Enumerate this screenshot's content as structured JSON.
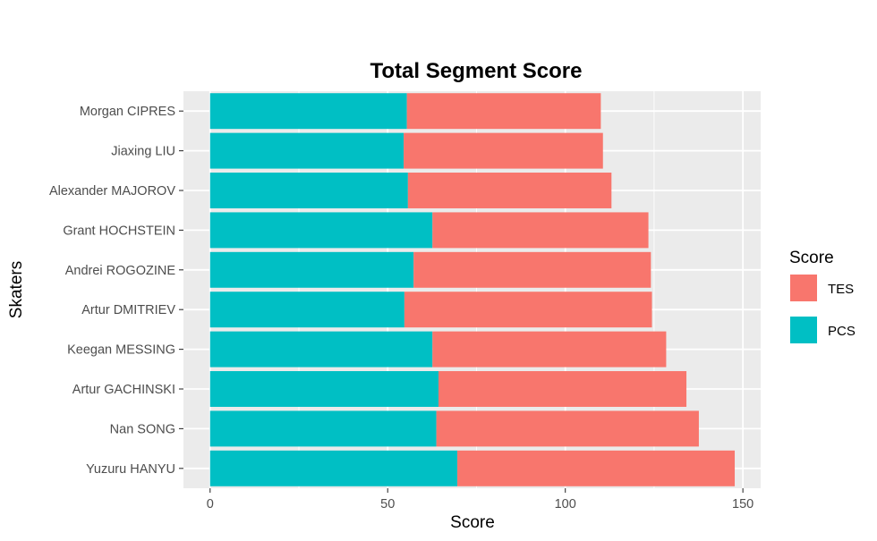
{
  "chart_data": {
    "type": "bar",
    "orientation": "horizontal",
    "stacked": true,
    "title": "Total Segment Score",
    "xlabel": "Score",
    "ylabel": "Skaters",
    "xlim": [
      -7.5,
      155
    ],
    "xticks": [
      0,
      50,
      100,
      150
    ],
    "grid": true,
    "background": "#ebebeb",
    "categories": [
      "Yuzuru HANYU",
      "Nan SONG",
      "Artur GACHINSKI",
      "Keegan MESSING",
      "Artur DMITRIEV",
      "Andrei ROGOZINE",
      "Grant HOCHSTEIN",
      "Alexander MAJOROV",
      "Jiaxing LIU",
      "Morgan CIPRES"
    ],
    "series": [
      {
        "name": "PCS",
        "color": "#00bfc4",
        "values": [
          69.6,
          63.7,
          64.3,
          62.6,
          54.7,
          57.3,
          62.6,
          55.7,
          54.5,
          55.4
        ]
      },
      {
        "name": "TES",
        "color": "#f8766d",
        "values": [
          78.1,
          73.9,
          69.8,
          65.8,
          69.7,
          66.8,
          60.8,
          57.3,
          56.1,
          54.6
        ]
      }
    ],
    "legend": {
      "title": "Score",
      "position": "right",
      "entries": [
        {
          "label": "TES",
          "color": "#f8766d"
        },
        {
          "label": "PCS",
          "color": "#00bfc4"
        }
      ]
    }
  }
}
